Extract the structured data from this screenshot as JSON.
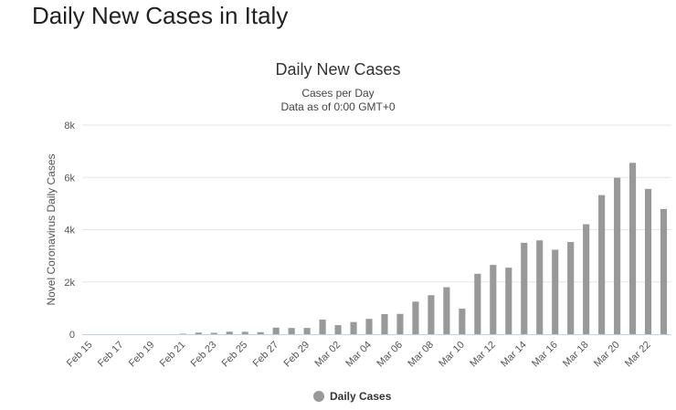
{
  "page": {
    "heading": "Daily New Cases in Italy"
  },
  "colors": {
    "bar": "#999999",
    "axis_line": "#c6cde8",
    "grid": "#e6e6e6",
    "text": "#555555"
  },
  "chart_data": {
    "type": "bar",
    "title": "Daily New Cases",
    "subtitle": [
      "Cases per Day",
      "Data as of 0:00 GMT+0"
    ],
    "xlabel": "",
    "ylabel": "Novel Coronavirus Daily Cases",
    "ylim": [
      0,
      8000
    ],
    "yticks": [
      0,
      2000,
      4000,
      6000,
      8000
    ],
    "ytick_labels": [
      "0",
      "2k",
      "4k",
      "6k",
      "8k"
    ],
    "grid": true,
    "categories": [
      "Feb 15",
      "Feb 16",
      "Feb 17",
      "Feb 18",
      "Feb 19",
      "Feb 20",
      "Feb 21",
      "Feb 22",
      "Feb 23",
      "Feb 24",
      "Feb 25",
      "Feb 26",
      "Feb 27",
      "Feb 28",
      "Feb 29",
      "Mar 01",
      "Mar 02",
      "Mar 03",
      "Mar 04",
      "Mar 05",
      "Mar 06",
      "Mar 07",
      "Mar 08",
      "Mar 09",
      "Mar 10",
      "Mar 11",
      "Mar 12",
      "Mar 13",
      "Mar 14",
      "Mar 15",
      "Mar 16",
      "Mar 17",
      "Mar 18",
      "Mar 19",
      "Mar 20",
      "Mar 21",
      "Mar 22",
      "Mar 23"
    ],
    "x_tick_labels": [
      "Feb 15",
      "Feb 17",
      "Feb 19",
      "Feb 21",
      "Feb 23",
      "Feb 25",
      "Feb 27",
      "Feb 29",
      "Mar 02",
      "Mar 04",
      "Mar 06",
      "Mar 08",
      "Mar 10",
      "Mar 12",
      "Mar 14",
      "Mar 16",
      "Mar 18",
      "Mar 20",
      "Mar 22"
    ],
    "series": [
      {
        "name": "Daily Cases",
        "values": [
          0,
          0,
          0,
          0,
          0,
          0,
          17,
          62,
          53,
          97,
          93,
          78,
          250,
          238,
          240,
          561,
          347,
          466,
          587,
          769,
          778,
          1247,
          1492,
          1797,
          977,
          2313,
          2651,
          2547,
          3497,
          3590,
          3233,
          3526,
          4207,
          5322,
          5986,
          6557,
          5560,
          4789
        ]
      }
    ]
  },
  "legend": {
    "label": "Daily Cases"
  }
}
